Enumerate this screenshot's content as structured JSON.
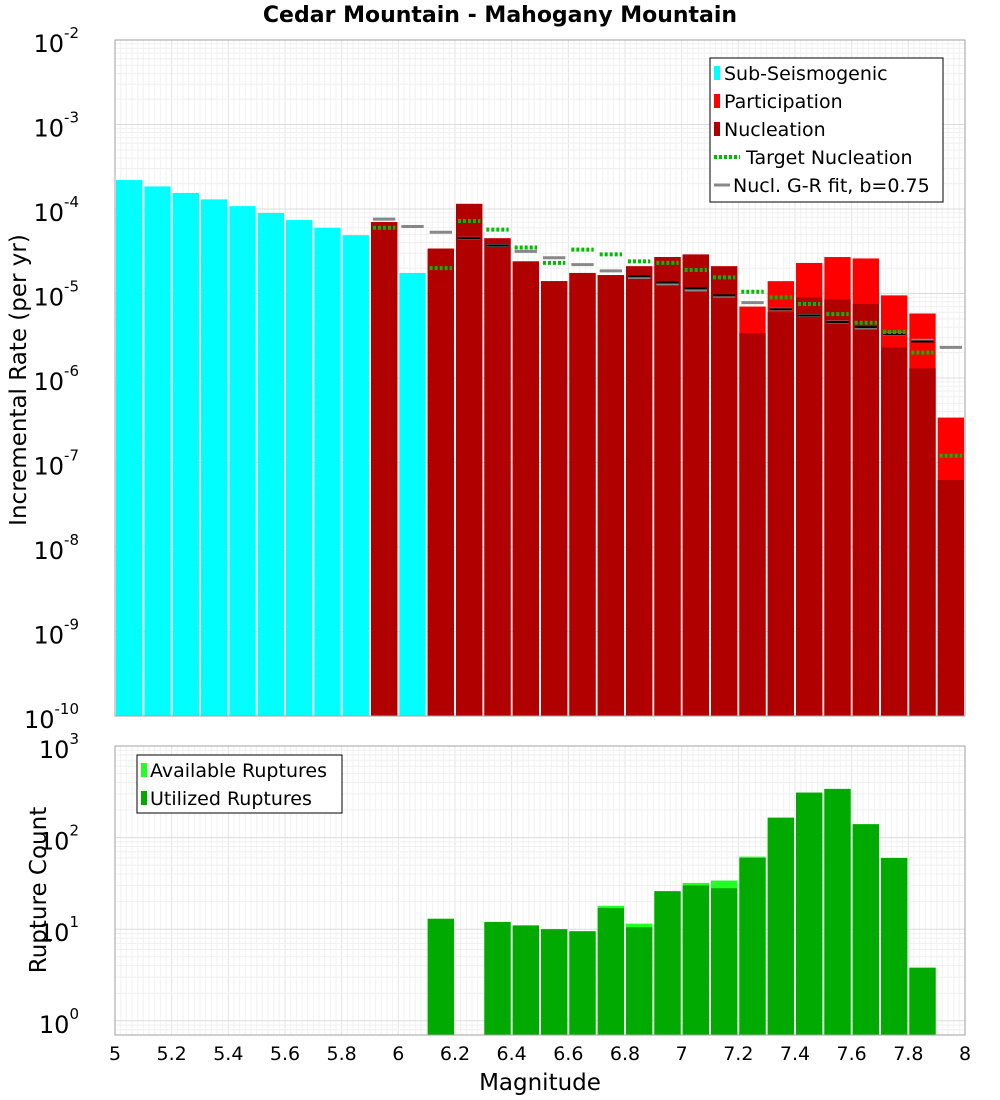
{
  "chart_data": [
    {
      "type": "bar",
      "title": "Cedar Mountain - Mahogany Mountain",
      "xlabel": "Magnitude",
      "ylabel": "Incremental Rate (per yr)",
      "yscale": "log",
      "xlim": [
        5,
        8
      ],
      "ylim": [
        1e-10,
        0.01
      ],
      "bin_width": 0.1,
      "ytick_labels": [
        {
          "base": "10",
          "exp": "-10"
        },
        {
          "base": "10",
          "exp": "-9"
        },
        {
          "base": "10",
          "exp": "-8"
        },
        {
          "base": "10",
          "exp": "-7"
        },
        {
          "base": "10",
          "exp": "-6"
        },
        {
          "base": "10",
          "exp": "-5"
        },
        {
          "base": "10",
          "exp": "-4"
        },
        {
          "base": "10",
          "exp": "-3"
        },
        {
          "base": "10",
          "exp": "-2"
        }
      ],
      "colors": {
        "sub_seismogenic": "#00ffff",
        "participation": "#ff0000",
        "nucleation": "#b00000",
        "target_nucleation": "#00bb00",
        "gr_fit": "#888888",
        "nucleation_marker": "#000000"
      },
      "legend": [
        {
          "label": "Sub-Seismogenic",
          "key": "sub_seismogenic"
        },
        {
          "label": "Participation",
          "key": "participation"
        },
        {
          "label": "Nucleation",
          "key": "nucleation"
        },
        {
          "label": "Target Nucleation",
          "key": "target_nucleation"
        },
        {
          "label": "Nucl. G-R fit, b=0.75",
          "key": "gr_fit"
        }
      ],
      "legend_position": "top-right",
      "sub_seismogenic": {
        "x": [
          5.05,
          5.15,
          5.25,
          5.35,
          5.45,
          5.55,
          5.65,
          5.75,
          5.85,
          6.05
        ],
        "values": [
          0.00022,
          0.000185,
          0.000155,
          0.00013,
          0.000108,
          9e-05,
          7.4e-05,
          6e-05,
          4.9e-05,
          1.75e-05
        ]
      },
      "participation": {
        "x": [
          5.95,
          6.15,
          6.25,
          6.35,
          6.45,
          6.55,
          6.65,
          6.75,
          6.85,
          6.95,
          7.05,
          7.15,
          7.25,
          7.35,
          7.45,
          7.55,
          7.65,
          7.75,
          7.85,
          7.95
        ],
        "values": [
          7e-05,
          3.4e-05,
          0.000115,
          4.5e-05,
          2.4e-05,
          1.4e-05,
          1.75e-05,
          1.65e-05,
          2.1e-05,
          2.7e-05,
          2.9e-05,
          2.1e-05,
          7e-06,
          1.4e-05,
          2.3e-05,
          2.7e-05,
          2.6e-05,
          9.5e-06,
          5.8e-06,
          3.4e-07
        ]
      },
      "nucleation": {
        "x": [
          5.95,
          6.15,
          6.25,
          6.35,
          6.45,
          6.55,
          6.65,
          6.75,
          6.85,
          6.95,
          7.05,
          7.15,
          7.25,
          7.35,
          7.45,
          7.55,
          7.65,
          7.75,
          7.85,
          7.95
        ],
        "values": [
          7e-05,
          3.4e-05,
          0.000115,
          4.5e-05,
          2.4e-05,
          1.4e-05,
          1.75e-05,
          1.65e-05,
          2.1e-05,
          2.7e-05,
          2.9e-05,
          2.1e-05,
          3.4e-06,
          6e-06,
          9e-06,
          8.5e-06,
          7.5e-06,
          2.3e-06,
          1.3e-06,
          6.2e-08
        ]
      },
      "nucleation_markers": {
        "x": [
          6.25,
          6.35,
          6.85,
          6.95,
          7.05,
          7.15,
          7.35,
          7.45,
          7.55,
          7.65,
          7.75,
          7.85
        ],
        "values": [
          4.5e-05,
          3.7e-05,
          1.6e-05,
          1.35e-05,
          1.15e-05,
          9.5e-06,
          6.5e-06,
          5.5e-06,
          4.6e-06,
          4e-06,
          3.3e-06,
          2.7e-06
        ]
      },
      "target_nucleation": {
        "x": [
          5.95,
          6.15,
          6.25,
          6.35,
          6.45,
          6.55,
          6.65,
          6.75,
          6.85,
          6.95,
          7.05,
          7.15,
          7.25,
          7.35,
          7.45,
          7.55,
          7.65,
          7.75,
          7.85,
          7.95
        ],
        "values": [
          6e-05,
          2e-05,
          7.2e-05,
          5.7e-05,
          3.5e-05,
          2.3e-05,
          3.3e-05,
          2.9e-05,
          2.4e-05,
          2.3e-05,
          1.9e-05,
          1.55e-05,
          1.05e-05,
          9e-06,
          7.5e-06,
          5.7e-06,
          4.5e-06,
          3.5e-06,
          2e-06,
          1.2e-07
        ]
      },
      "gr_fit": {
        "x": [
          5.95,
          6.05,
          6.15,
          6.25,
          6.35,
          6.45,
          6.55,
          6.65,
          6.75,
          6.85,
          6.95,
          7.05,
          7.15,
          7.25,
          7.35,
          7.45,
          7.55,
          7.65,
          7.75,
          7.85,
          7.95
        ],
        "values": [
          7.6e-05,
          6.2e-05,
          5.3e-05,
          4.5e-05,
          3.7e-05,
          3.15e-05,
          2.65e-05,
          2.2e-05,
          1.85e-05,
          1.55e-05,
          1.3e-05,
          1.1e-05,
          9.3e-06,
          7.8e-06,
          6.5e-06,
          5.5e-06,
          4.6e-06,
          3.9e-06,
          3.3e-06,
          2.8e-06,
          2.3e-06
        ]
      }
    },
    {
      "type": "bar",
      "xlabel": "Magnitude",
      "ylabel": "Rupture Count",
      "yscale": "log",
      "xlim": [
        5,
        8
      ],
      "ylim": [
        0.7,
        1000
      ],
      "bin_width": 0.1,
      "xtick_labels": [
        "5",
        "5.2",
        "5.4",
        "5.6",
        "5.8",
        "6",
        "6.2",
        "6.4",
        "6.6",
        "6.8",
        "7",
        "7.2",
        "7.4",
        "7.6",
        "7.8",
        "8"
      ],
      "ytick_labels": [
        {
          "base": "10",
          "exp": "0"
        },
        {
          "base": "10",
          "exp": "1"
        },
        {
          "base": "10",
          "exp": "2"
        },
        {
          "base": "10",
          "exp": "3"
        }
      ],
      "colors": {
        "available": "#22ff22",
        "utilized": "#00aa00"
      },
      "legend": [
        {
          "label": "Available Ruptures",
          "key": "available"
        },
        {
          "label": "Utilized Ruptures",
          "key": "utilized"
        }
      ],
      "legend_position": "top-left",
      "available": {
        "x": [
          6.15,
          6.35,
          6.45,
          6.55,
          6.65,
          6.75,
          6.85,
          6.95,
          7.05,
          7.15,
          7.25,
          7.35,
          7.45,
          7.55,
          7.65,
          7.75,
          7.85
        ],
        "values": [
          13,
          12,
          11,
          10,
          9.5,
          18,
          11.5,
          26,
          32,
          34,
          62,
          165,
          310,
          340,
          140,
          60,
          3.8
        ]
      },
      "utilized": {
        "x": [
          6.15,
          6.35,
          6.45,
          6.55,
          6.65,
          6.75,
          6.85,
          6.95,
          7.05,
          7.15,
          7.25,
          7.35,
          7.45,
          7.55,
          7.65,
          7.75,
          7.85
        ],
        "values": [
          13,
          12,
          11,
          10,
          9.5,
          17,
          10.5,
          26,
          30,
          28,
          60,
          165,
          310,
          340,
          140,
          60,
          3.8
        ]
      }
    }
  ]
}
